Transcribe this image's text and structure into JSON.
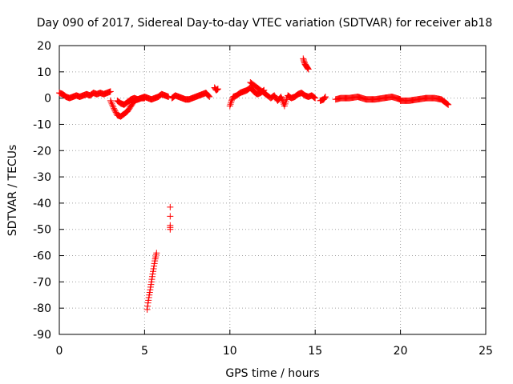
{
  "chart_data": {
    "type": "scatter",
    "title": "Day 090 of 2017, Sidereal Day-to-day VTEC variation (SDTVAR) for receiver ab18",
    "xlabel": "GPS time / hours",
    "ylabel": "SDTVAR / TECUs",
    "xlim": [
      0,
      25
    ],
    "ylim": [
      -90,
      20
    ],
    "xticks": [
      "0",
      "5",
      "10",
      "15",
      "20",
      "25"
    ],
    "yticks": [
      "20",
      "10",
      "0",
      "-10",
      "-20",
      "-30",
      "-40",
      "-50",
      "-60",
      "-70",
      "-80",
      "-90"
    ],
    "grid": true,
    "marker": "+",
    "series_color": "#ff0000",
    "series": [
      {
        "name": "SDTVAR",
        "segments": [
          {
            "x": [
              0.0,
              0.2,
              0.4,
              0.6,
              0.8,
              1.0,
              1.2,
              1.4,
              1.6,
              1.8,
              2.0,
              2.2,
              2.4,
              2.6,
              2.8,
              3.0
            ],
            "y": [
              2.0,
              1.5,
              0.5,
              0.0,
              0.5,
              1.0,
              0.5,
              1.0,
              1.5,
              1.0,
              2.0,
              1.5,
              2.0,
              1.5,
              2.0,
              2.5
            ]
          },
          {
            "x": [
              3.0,
              3.2,
              3.4,
              3.6,
              3.8,
              4.0,
              4.2,
              4.4,
              4.6,
              4.8,
              5.0
            ],
            "y": [
              -1.0,
              -4.0,
              -6.5,
              -7.0,
              -6.0,
              -5.0,
              -3.0,
              -1.0,
              -0.5,
              0.0,
              0.0
            ]
          },
          {
            "x": [
              3.4,
              3.6,
              3.8,
              4.0,
              4.2,
              4.4,
              4.6,
              4.8,
              5.0,
              5.2,
              5.4,
              5.6,
              5.8,
              6.0,
              6.2,
              6.4
            ],
            "y": [
              -1.0,
              -2.0,
              -2.5,
              -1.5,
              -0.5,
              0.0,
              -0.5,
              0.0,
              0.5,
              0.0,
              -0.5,
              0.0,
              0.5,
              1.5,
              1.0,
              0.5
            ]
          },
          {
            "x": [
              6.6,
              6.8,
              7.0,
              7.2,
              7.4,
              7.6,
              7.8,
              8.0,
              8.2,
              8.4,
              8.6,
              8.8
            ],
            "y": [
              0.0,
              1.0,
              0.5,
              0.0,
              -0.5,
              -0.5,
              0.0,
              0.5,
              1.0,
              1.5,
              2.0,
              0.5
            ]
          },
          {
            "x": [
              9.1,
              9.2,
              9.3
            ],
            "y": [
              4.0,
              3.0,
              3.5
            ]
          },
          {
            "x": [
              10.0,
              10.1,
              10.2,
              10.4,
              10.6,
              10.8,
              11.0,
              11.2,
              11.4,
              11.6,
              11.8,
              12.0
            ],
            "y": [
              -3.0,
              -1.0,
              0.5,
              1.0,
              2.0,
              2.5,
              3.0,
              4.0,
              2.5,
              1.5,
              2.0,
              3.0
            ]
          },
          {
            "x": [
              11.2,
              12.0,
              12.4,
              12.6,
              12.8,
              13.0,
              13.2,
              13.4,
              13.6,
              13.8,
              14.0,
              14.2,
              14.4,
              14.6,
              14.8,
              15.0
            ],
            "y": [
              6.0,
              2.0,
              0.0,
              1.0,
              -1.0,
              0.5,
              -3.0,
              1.0,
              0.0,
              0.5,
              1.5,
              2.0,
              1.0,
              0.5,
              1.0,
              0.0
            ]
          },
          {
            "x": [
              14.3,
              14.35,
              14.4,
              14.45,
              14.5,
              14.55,
              14.6
            ],
            "y": [
              15.0,
              14.0,
              13.0,
              12.5,
              12.0,
              11.5,
              11.0
            ]
          },
          {
            "x": [
              15.3,
              15.5,
              15.6
            ],
            "y": [
              -1.0,
              -0.5,
              0.5
            ]
          },
          {
            "x": [
              16.2,
              16.5,
              17.0,
              17.5,
              18.0,
              18.5,
              19.0,
              19.5,
              20.0
            ],
            "y": [
              -0.5,
              0.0,
              0.0,
              0.5,
              -0.5,
              -0.5,
              0.0,
              0.5,
              -0.5
            ]
          },
          {
            "x": [
              20.0,
              20.5,
              21.0,
              21.5,
              22.0,
              22.4,
              22.6,
              22.8
            ],
            "y": [
              -1.0,
              -1.0,
              -0.5,
              0.0,
              0.0,
              -0.5,
              -1.5,
              -2.5
            ]
          },
          {
            "x": [
              5.15,
              5.2,
              5.25,
              5.3,
              5.35,
              5.4,
              5.45,
              5.5,
              5.55,
              5.6,
              5.65,
              5.7
            ],
            "y": [
              -80.5,
              -78.0,
              -76.0,
              -74.0,
              -72.0,
              -70.0,
              -68.0,
              -66.0,
              -64.0,
              -62.0,
              -60.5,
              -59.0
            ]
          },
          {
            "x": [
              6.5,
              6.5,
              6.5
            ],
            "y": [
              -41.5,
              -48.5,
              -50.0
            ]
          }
        ]
      }
    ]
  }
}
